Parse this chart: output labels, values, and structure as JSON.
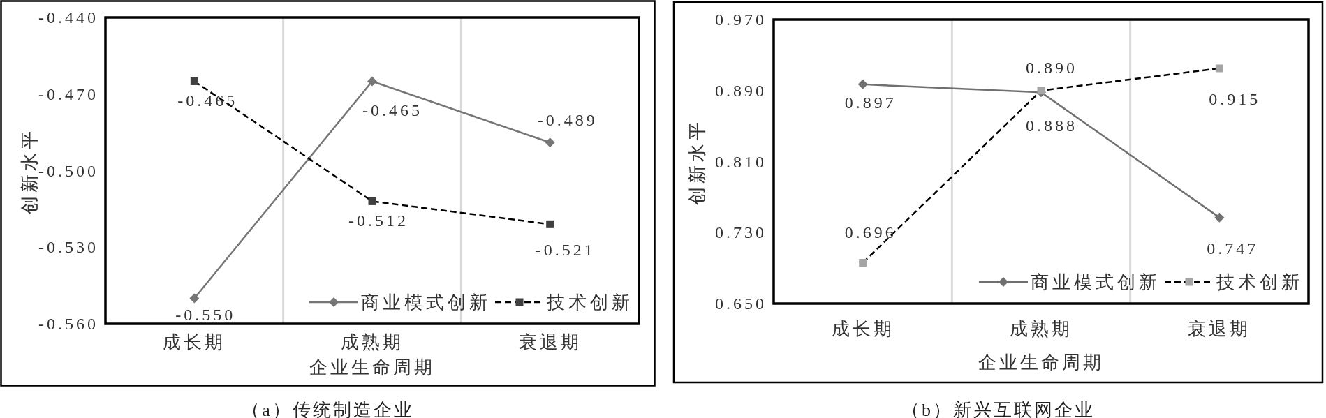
{
  "chart_data": [
    {
      "type": "line",
      "title": "（a）传统制造企业",
      "xlabel": "企业生命周期",
      "ylabel": "创新水平",
      "categories": [
        "成长期",
        "成熟期",
        "衰退期"
      ],
      "series": [
        {
          "name": "商业模式创新",
          "color": "#767676",
          "marker": "diamond",
          "line_style": "solid",
          "values": [
            -0.55,
            -0.465,
            -0.489
          ],
          "value_labels": [
            "-0.550",
            "-0.465",
            "-0.489"
          ]
        },
        {
          "name": "技术创新",
          "color": "#000000",
          "colors": [
            "#404040",
            "#404040",
            "#404040"
          ],
          "marker": "square",
          "line_style": "dashed",
          "values": [
            -0.465,
            -0.512,
            -0.521
          ],
          "value_labels": [
            "-0.465",
            "-0.512",
            "-0.521"
          ]
        }
      ],
      "ylim": [
        -0.56,
        -0.44
      ],
      "yticks": [
        {
          "value": -0.56,
          "label": "-0.560"
        },
        {
          "value": -0.53,
          "label": "-0.530"
        },
        {
          "value": -0.5,
          "label": "-0.500"
        },
        {
          "value": -0.47,
          "label": "-0.470"
        },
        {
          "value": -0.44,
          "label": "-0.440"
        }
      ],
      "grid": "x",
      "legend": "bottom right"
    },
    {
      "type": "line",
      "title": "（b）新兴互联网企业",
      "xlabel": "企业生命周期",
      "ylabel": "创新水平",
      "categories": [
        "成长期",
        "成熟期",
        "衰退期"
      ],
      "series": [
        {
          "name": "商业模式创新",
          "color": "#707070",
          "marker": "diamond",
          "line_style": "solid",
          "values": [
            0.897,
            0.888,
            0.747
          ],
          "value_labels": [
            "0.897",
            "0.888",
            "0.747"
          ]
        },
        {
          "name": "技术创新",
          "color": "#000000",
          "colors": [
            "#a5a5a5",
            "#a5a5a5",
            "#a5a5a5"
          ],
          "marker": "square",
          "line_style": "dashed",
          "values": [
            0.696,
            0.89,
            0.915
          ],
          "value_labels": [
            "0.696",
            "0.890",
            "0.915"
          ]
        }
      ],
      "ylim": [
        0.65,
        0.97
      ],
      "yticks": [
        {
          "value": 0.65,
          "label": "0.650"
        },
        {
          "value": 0.73,
          "label": "0.730"
        },
        {
          "value": 0.81,
          "label": "0.810"
        },
        {
          "value": 0.89,
          "label": "0.890"
        },
        {
          "value": 0.97,
          "label": "0.970"
        }
      ],
      "grid": "x",
      "legend": "bottom right"
    }
  ]
}
